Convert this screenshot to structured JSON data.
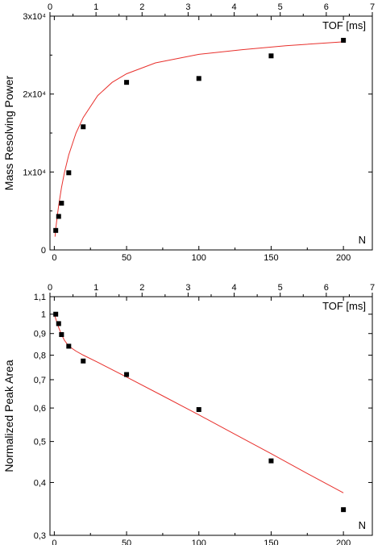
{
  "chart_data": [
    {
      "type": "scatter",
      "ylabel": "Mass Resolving Power",
      "x_label_corner": "N",
      "top_axis_label": "TOF [ms]",
      "xlim": [
        -3,
        220
      ],
      "ylim": [
        0,
        30000
      ],
      "top_xlim": [
        0,
        7
      ],
      "x_ticks": [
        0,
        50,
        100,
        150,
        200
      ],
      "x_tick_labels": [
        "0",
        "50",
        "100",
        "150",
        "200"
      ],
      "top_ticks": [
        0,
        1,
        2,
        3,
        4,
        5,
        6,
        7
      ],
      "top_tick_labels": [
        "0",
        "1",
        "2",
        "3",
        "4",
        "5",
        "6",
        "7"
      ],
      "y_ticks": [
        0,
        10000,
        20000,
        30000
      ],
      "y_tick_labels": [
        "0",
        "1x10⁴",
        "2x10⁴",
        "3x10⁴"
      ],
      "series": [
        {
          "x": [
            1,
            3,
            5,
            10,
            20,
            50,
            100,
            150,
            200
          ],
          "y": [
            2500,
            4300,
            6000,
            9900,
            15800,
            21500,
            22000,
            24900,
            26900
          ]
        }
      ],
      "fit": {
        "x": [
          0.5,
          1,
          2,
          3,
          5,
          7,
          10,
          15,
          20,
          30,
          40,
          50,
          70,
          100,
          130,
          160,
          200
        ],
        "y": [
          1700,
          2700,
          4300,
          5700,
          8000,
          9900,
          12200,
          15000,
          17000,
          19800,
          21500,
          22600,
          24000,
          25100,
          25700,
          26200,
          26700
        ]
      },
      "colors": {
        "points": "#000000",
        "fit": "#e8302c"
      }
    },
    {
      "type": "scatter",
      "ylabel": "Normalized Peak Area",
      "x_label_corner": "N",
      "top_axis_label": "TOF [ms]",
      "xlim": [
        -3,
        220
      ],
      "yscale": "log",
      "ylim": [
        0.3,
        1.1
      ],
      "top_xlim": [
        0,
        7
      ],
      "x_ticks": [
        0,
        50,
        100,
        150,
        200
      ],
      "x_tick_labels": [
        "0",
        "50",
        "100",
        "150",
        "200"
      ],
      "top_ticks": [
        0,
        1,
        2,
        3,
        4,
        5,
        6,
        7
      ],
      "top_tick_labels": [
        "0",
        "1",
        "2",
        "3",
        "4",
        "5",
        "6",
        "7"
      ],
      "y_ticks": [
        0.3,
        0.4,
        0.5,
        0.6,
        0.7,
        0.8,
        0.9,
        1.0,
        1.1
      ],
      "y_tick_labels": [
        "0,3",
        "0,4",
        "0,5",
        "0,6",
        "0,7",
        "0,8",
        "0,9",
        "1",
        "1,1"
      ],
      "series": [
        {
          "x": [
            1,
            3,
            5,
            10,
            20,
            50,
            100,
            150,
            200
          ],
          "y": [
            1.0,
            0.95,
            0.895,
            0.84,
            0.775,
            0.72,
            0.595,
            0.45,
            0.345
          ]
        }
      ],
      "fit": {
        "x": [
          0,
          1,
          2,
          3,
          5,
          7,
          10,
          15,
          20,
          30,
          50,
          75,
          100,
          125,
          150,
          175,
          200
        ],
        "y": [
          1.0,
          0.975,
          0.952,
          0.93,
          0.895,
          0.868,
          0.84,
          0.818,
          0.8,
          0.77,
          0.71,
          0.641,
          0.578,
          0.52,
          0.468,
          0.42,
          0.378
        ]
      },
      "colors": {
        "points": "#000000",
        "fit": "#e8302c"
      }
    }
  ]
}
